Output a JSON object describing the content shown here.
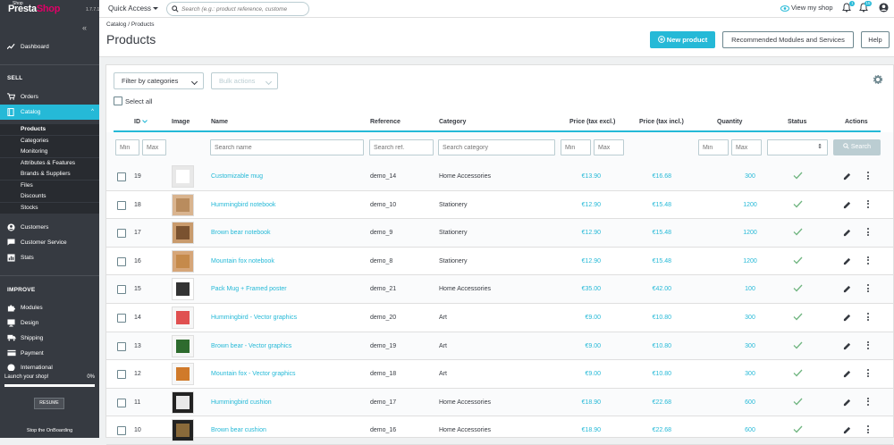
{
  "topbar": {
    "logo_text_a": "Presta",
    "logo_text_b": "Shop",
    "logo_shop": "Shop",
    "version": "1.7.7.1",
    "quick_access": "Quick Access",
    "search_placeholder": "Search (e.g.: product reference, custome",
    "view_shop": "View my shop",
    "notif_badge_1": "1",
    "notif_badge_2": "15"
  },
  "sidebar": {
    "collapse": "«",
    "dashboard": "Dashboard",
    "section_sell": "SELL",
    "orders": "Orders",
    "catalog": "Catalog",
    "catalog_sub": [
      "Products",
      "Categories",
      "Monitoring",
      "Attributes & Features",
      "Brands & Suppliers",
      "Files",
      "Discounts",
      "Stocks"
    ],
    "customers": "Customers",
    "customer_service": "Customer Service",
    "stats": "Stats",
    "section_improve": "IMPROVE",
    "modules": "Modules",
    "design": "Design",
    "shipping": "Shipping",
    "payment": "Payment",
    "international": "International",
    "launch_label": "Launch your shop!",
    "launch_pct": "0%",
    "resume": "RESUME",
    "stop": "Stop the OnBoarding"
  },
  "header": {
    "breadcrumb": "Catalog  /  Products",
    "title": "Products",
    "new_product": "New product",
    "recommended": "Recommended Modules and Services",
    "help": "Help"
  },
  "toolbar": {
    "filter_by_categories": "Filter by categories",
    "bulk_actions": "Bulk actions",
    "select_all": "Select all"
  },
  "table": {
    "headers": {
      "id": "ID",
      "image": "Image",
      "name": "Name",
      "reference": "Reference",
      "category": "Category",
      "price_excl": "Price (tax excl.)",
      "price_incl": "Price (tax incl.)",
      "quantity": "Quantity",
      "status": "Status",
      "actions": "Actions"
    },
    "filters": {
      "id_min": "Min",
      "id_max": "Max",
      "name": "Search name",
      "ref": "Search ref.",
      "category": "Search category",
      "price_min": "Min",
      "price_max": "Max",
      "qty_min": "Min",
      "qty_max": "Max",
      "search_button": "Search"
    },
    "rows": [
      {
        "id": "19",
        "name": "Customizable mug",
        "ref": "demo_14",
        "category": "Home Accessories",
        "price_excl": "€13.90",
        "price_incl": "€16.68",
        "qty": "300"
      },
      {
        "id": "18",
        "name": "Hummingbird notebook",
        "ref": "demo_10",
        "category": "Stationery",
        "price_excl": "€12.90",
        "price_incl": "€15.48",
        "qty": "1200"
      },
      {
        "id": "17",
        "name": "Brown bear notebook",
        "ref": "demo_9",
        "category": "Stationery",
        "price_excl": "€12.90",
        "price_incl": "€15.48",
        "qty": "1200"
      },
      {
        "id": "16",
        "name": "Mountain fox notebook",
        "ref": "demo_8",
        "category": "Stationery",
        "price_excl": "€12.90",
        "price_incl": "€15.48",
        "qty": "1200"
      },
      {
        "id": "15",
        "name": "Pack Mug + Framed poster",
        "ref": "demo_21",
        "category": "Home Accessories",
        "price_excl": "€35.00",
        "price_incl": "€42.00",
        "qty": "100"
      },
      {
        "id": "14",
        "name": "Hummingbird - Vector graphics",
        "ref": "demo_20",
        "category": "Art",
        "price_excl": "€9.00",
        "price_incl": "€10.80",
        "qty": "300"
      },
      {
        "id": "13",
        "name": "Brown bear - Vector graphics",
        "ref": "demo_19",
        "category": "Art",
        "price_excl": "€9.00",
        "price_incl": "€10.80",
        "qty": "300"
      },
      {
        "id": "12",
        "name": "Mountain fox - Vector graphics",
        "ref": "demo_18",
        "category": "Art",
        "price_excl": "€9.00",
        "price_incl": "€10.80",
        "qty": "300"
      },
      {
        "id": "11",
        "name": "Hummingbird cushion",
        "ref": "demo_17",
        "category": "Home Accessories",
        "price_excl": "€18.90",
        "price_incl": "€22.68",
        "qty": "600"
      },
      {
        "id": "10",
        "name": "Brown bear cushion",
        "ref": "demo_16",
        "category": "Home Accessories",
        "price_excl": "€18.90",
        "price_incl": "€22.68",
        "qty": "600"
      }
    ]
  },
  "colors": {
    "accent": "#25b9d7",
    "sidebar": "#363a41",
    "success": "#70b580"
  }
}
